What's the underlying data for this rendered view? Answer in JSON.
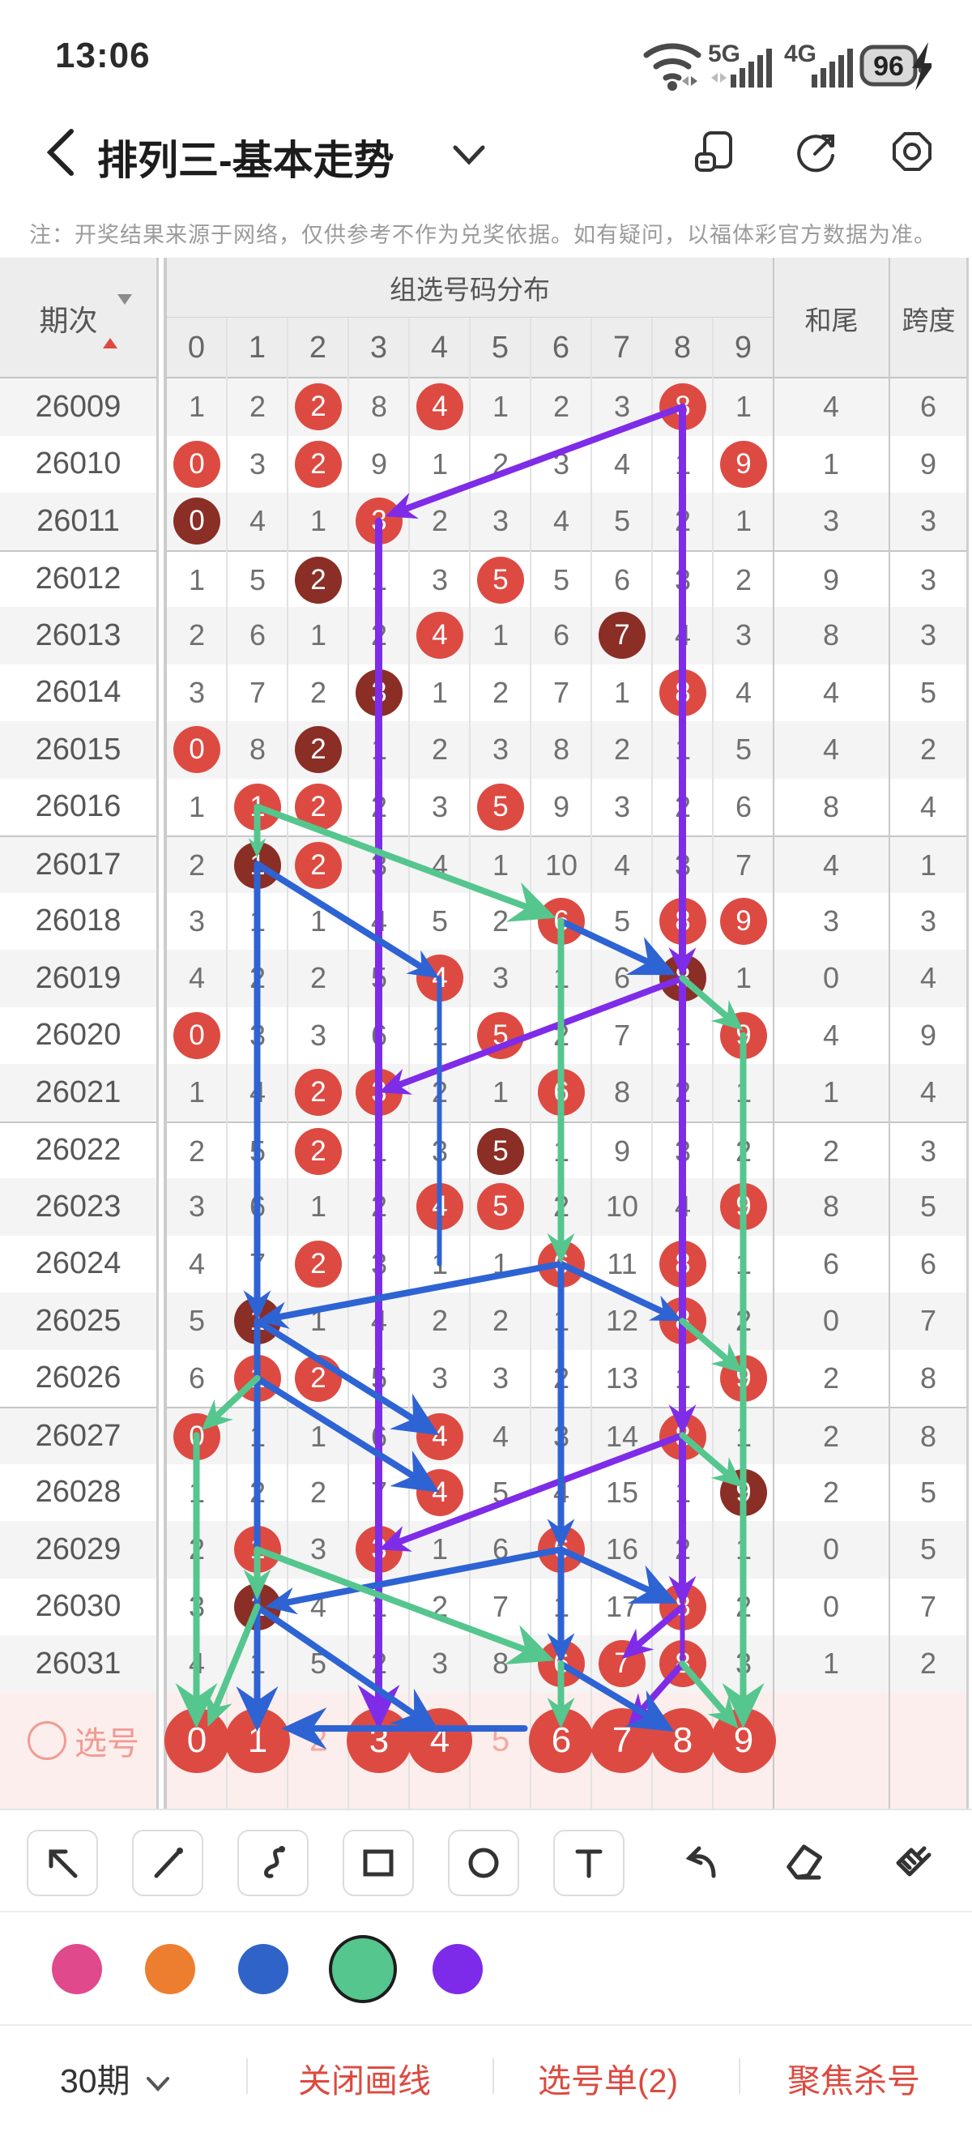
{
  "status_bar": {
    "time": "13:06",
    "battery": "96",
    "net1": "5G",
    "net2": "4G"
  },
  "nav": {
    "title": "排列三-基本走势"
  },
  "notice": "注：开奖结果来源于网络，仅供参考不作为兑奖依据。如有疑问，以福体彩官方数据为准。",
  "table": {
    "header": {
      "period": "期次",
      "group": "组选号码分布",
      "digits": [
        "0",
        "1",
        "2",
        "3",
        "4",
        "5",
        "6",
        "7",
        "8",
        "9"
      ],
      "hewei": "和尾",
      "kuadu": "跨度"
    },
    "rows": [
      {
        "p": "26009",
        "c": [
          "1",
          "2",
          "2r",
          "8",
          "4r",
          "1",
          "2",
          "3",
          "8r",
          "1"
        ],
        "h": "4",
        "k": "6"
      },
      {
        "p": "26010",
        "c": [
          "0r",
          "3",
          "2r",
          "9",
          "1",
          "2",
          "3",
          "4",
          "1",
          "9r"
        ],
        "h": "1",
        "k": "9"
      },
      {
        "p": "26011",
        "c": [
          "0d",
          "4",
          "1",
          "3r",
          "2",
          "3",
          "4",
          "5",
          "2",
          "1"
        ],
        "h": "3",
        "k": "3"
      },
      {
        "p": "26012",
        "c": [
          "1",
          "5",
          "2d",
          "1",
          "3",
          "5r",
          "5",
          "6",
          "3",
          "2"
        ],
        "h": "9",
        "k": "3"
      },
      {
        "p": "26013",
        "c": [
          "2",
          "6",
          "1",
          "2",
          "4r",
          "1",
          "6",
          "7d",
          "4",
          "3"
        ],
        "h": "8",
        "k": "3"
      },
      {
        "p": "26014",
        "c": [
          "3",
          "7",
          "2",
          "3d",
          "1",
          "2",
          "7",
          "1",
          "8r",
          "4"
        ],
        "h": "4",
        "k": "5"
      },
      {
        "p": "26015",
        "c": [
          "0r",
          "8",
          "2d",
          "1",
          "2",
          "3",
          "8",
          "2",
          "1",
          "5"
        ],
        "h": "4",
        "k": "2"
      },
      {
        "p": "26016",
        "c": [
          "1",
          "1r",
          "2r",
          "2",
          "3",
          "5r",
          "9",
          "3",
          "2",
          "6"
        ],
        "h": "8",
        "k": "4"
      },
      {
        "p": "26017",
        "c": [
          "2",
          "1d",
          "2r",
          "3",
          "4",
          "1",
          "10",
          "4",
          "3",
          "7"
        ],
        "h": "4",
        "k": "1"
      },
      {
        "p": "26018",
        "c": [
          "3",
          "1",
          "1",
          "4",
          "5",
          "2",
          "6r",
          "5",
          "8r",
          "9r"
        ],
        "h": "3",
        "k": "3"
      },
      {
        "p": "26019",
        "c": [
          "4",
          "2",
          "2",
          "5",
          "4r",
          "3",
          "1",
          "6",
          "8d",
          "1"
        ],
        "h": "0",
        "k": "4"
      },
      {
        "p": "26020",
        "c": [
          "0r",
          "3",
          "3",
          "6",
          "1",
          "5r",
          "2",
          "7",
          "1",
          "9r"
        ],
        "h": "4",
        "k": "9"
      },
      {
        "p": "26021",
        "c": [
          "1",
          "4",
          "2r",
          "3r",
          "2",
          "1",
          "6r",
          "8",
          "2",
          "1"
        ],
        "h": "1",
        "k": "4"
      },
      {
        "p": "26022",
        "c": [
          "2",
          "5",
          "2r",
          "1",
          "3",
          "5d",
          "1",
          "9",
          "3",
          "2"
        ],
        "h": "2",
        "k": "3"
      },
      {
        "p": "26023",
        "c": [
          "3",
          "6",
          "1",
          "2",
          "4r",
          "5r",
          "2",
          "10",
          "4",
          "9r"
        ],
        "h": "8",
        "k": "5"
      },
      {
        "p": "26024",
        "c": [
          "4",
          "7",
          "2r",
          "3",
          "1",
          "1",
          "6r",
          "11",
          "8r",
          "1"
        ],
        "h": "6",
        "k": "6"
      },
      {
        "p": "26025",
        "c": [
          "5",
          "1d",
          "1",
          "4",
          "2",
          "2",
          "1",
          "12",
          "8r",
          "2"
        ],
        "h": "0",
        "k": "7"
      },
      {
        "p": "26026",
        "c": [
          "6",
          "1r",
          "2r",
          "5",
          "3",
          "3",
          "2",
          "13",
          "1",
          "9r"
        ],
        "h": "2",
        "k": "8"
      },
      {
        "p": "26027",
        "c": [
          "0r",
          "1",
          "1",
          "6",
          "4r",
          "4",
          "3",
          "14",
          "8r",
          "1"
        ],
        "h": "2",
        "k": "8"
      },
      {
        "p": "26028",
        "c": [
          "1",
          "2",
          "2",
          "7",
          "4r",
          "5",
          "4",
          "15",
          "1",
          "9d"
        ],
        "h": "2",
        "k": "5"
      },
      {
        "p": "26029",
        "c": [
          "2",
          "1r",
          "3",
          "3r",
          "1",
          "6",
          "6r",
          "16",
          "2",
          "1"
        ],
        "h": "0",
        "k": "5"
      },
      {
        "p": "26030",
        "c": [
          "3",
          "1d",
          "4",
          "1",
          "2",
          "7",
          "1",
          "17",
          "8r",
          "2"
        ],
        "h": "0",
        "k": "7"
      },
      {
        "p": "26031",
        "c": [
          "4",
          "1",
          "5",
          "2",
          "3",
          "8",
          "6r",
          "7r",
          "8r",
          "3"
        ],
        "h": "1",
        "k": "2"
      }
    ],
    "pick_rows": [
      {
        "label": "选号",
        "c": [
          "0r",
          "1r",
          "2",
          "3r",
          "4r",
          "5",
          "6r",
          "7r",
          "8r",
          "9r"
        ]
      },
      {
        "label": "选号",
        "c": [
          "0",
          "1",
          "2",
          "3",
          "4",
          "5",
          "6",
          "7",
          "8",
          "9"
        ]
      }
    ]
  },
  "annotations": {
    "colors": {
      "purple": "#7e2ce8",
      "blue": "#2e63d4",
      "green": "#55c68e"
    },
    "arrows": [
      {
        "c": "purple",
        "f": [
          8,
          0
        ],
        "t": [
          3,
          2,
          8,
          -6
        ],
        "h": "med"
      },
      {
        "c": "purple",
        "f": [
          3,
          2
        ],
        "t": [
          3,
          23,
          0,
          -12
        ],
        "h": "big",
        "w": 9
      },
      {
        "c": "purple",
        "f": [
          8,
          0
        ],
        "t": [
          8,
          10
        ],
        "h": "med",
        "w": 9
      },
      {
        "c": "purple",
        "f": [
          8,
          10
        ],
        "t": [
          8,
          18
        ],
        "h": "med",
        "w": 9
      },
      {
        "c": "purple",
        "f": [
          8,
          18
        ],
        "t": [
          8,
          21
        ],
        "h": "med",
        "w": 9
      },
      {
        "c": "purple",
        "f": [
          8,
          21
        ],
        "t": [
          8,
          22
        ],
        "h": "none",
        "w": 6
      },
      {
        "c": "purple",
        "f": [
          8,
          10
        ],
        "t": [
          3,
          12
        ],
        "h": "med"
      },
      {
        "c": "purple",
        "f": [
          8,
          18
        ],
        "t": [
          3,
          20
        ],
        "h": "med"
      },
      {
        "c": "purple",
        "f": [
          8,
          21
        ],
        "t": [
          7,
          22,
          0,
          -6
        ],
        "h": "med"
      },
      {
        "c": "purple",
        "f": [
          8,
          22
        ],
        "t": [
          7,
          23,
          8,
          -18
        ],
        "h": "med"
      },
      {
        "c": "blue",
        "f": [
          1,
          8
        ],
        "t": [
          4,
          10
        ],
        "h": "med"
      },
      {
        "c": "blue",
        "f": [
          6,
          9
        ],
        "t": [
          8,
          10,
          -8,
          -4
        ],
        "h": "big"
      },
      {
        "c": "blue",
        "f": [
          1,
          8
        ],
        "t": [
          1,
          16
        ],
        "h": "med"
      },
      {
        "c": "blue",
        "f": [
          1,
          16
        ],
        "t": [
          1,
          23,
          0,
          -10
        ],
        "h": "big"
      },
      {
        "c": "blue",
        "f": [
          6,
          15
        ],
        "t": [
          1,
          16
        ],
        "h": "med"
      },
      {
        "c": "blue",
        "f": [
          6,
          15
        ],
        "t": [
          8,
          16
        ],
        "h": "med"
      },
      {
        "c": "blue",
        "f": [
          1,
          16
        ],
        "t": [
          4,
          18
        ],
        "h": "big"
      },
      {
        "c": "blue",
        "f": [
          1,
          17
        ],
        "t": [
          4,
          19
        ],
        "h": "big"
      },
      {
        "c": "blue",
        "f": [
          6,
          15
        ],
        "t": [
          6,
          20
        ],
        "h": "med"
      },
      {
        "c": "blue",
        "f": [
          6,
          20
        ],
        "t": [
          6,
          22
        ],
        "h": "med"
      },
      {
        "c": "blue",
        "f": [
          6,
          20
        ],
        "t": [
          1,
          21,
          10,
          0
        ],
        "h": "med"
      },
      {
        "c": "blue",
        "f": [
          6,
          20
        ],
        "t": [
          8,
          21,
          -6,
          -4
        ],
        "h": "big"
      },
      {
        "c": "blue",
        "f": [
          1,
          21
        ],
        "t": [
          4,
          23,
          0,
          -10
        ],
        "h": "big"
      },
      {
        "c": "blue",
        "f": [
          5,
          23,
          30,
          -14
        ],
        "t": [
          1,
          23,
          30,
          -14
        ],
        "h": "big"
      },
      {
        "c": "blue",
        "f": [
          6,
          22
        ],
        "t": [
          8,
          23,
          -10,
          -10
        ],
        "h": "big"
      },
      {
        "c": "blue",
        "f": [
          4,
          10
        ],
        "t": [
          4,
          15
        ],
        "h": "none",
        "w": 6
      },
      {
        "c": "green",
        "f": [
          1,
          7
        ],
        "t": [
          1,
          8,
          0,
          -8
        ],
        "h": "small"
      },
      {
        "c": "green",
        "f": [
          1,
          7
        ],
        "t": [
          6,
          9,
          -6,
          -4
        ],
        "h": "big"
      },
      {
        "c": "green",
        "f": [
          6,
          9
        ],
        "t": [
          6,
          15
        ],
        "h": "med"
      },
      {
        "c": "green",
        "f": [
          8,
          10
        ],
        "t": [
          9,
          11,
          0,
          -6
        ],
        "h": "med"
      },
      {
        "c": "green",
        "f": [
          9,
          11
        ],
        "t": [
          9,
          23,
          0,
          -14
        ],
        "h": "big"
      },
      {
        "c": "green",
        "f": [
          8,
          16
        ],
        "t": [
          9,
          17,
          0,
          -6
        ],
        "h": "med"
      },
      {
        "c": "green",
        "f": [
          8,
          18
        ],
        "t": [
          9,
          19,
          0,
          -6
        ],
        "h": "med"
      },
      {
        "c": "green",
        "f": [
          1,
          17
        ],
        "t": [
          0,
          18,
          6,
          -6
        ],
        "h": "med"
      },
      {
        "c": "green",
        "f": [
          0,
          18
        ],
        "t": [
          0,
          23,
          0,
          -14
        ],
        "h": "big"
      },
      {
        "c": "green",
        "f": [
          1,
          20
        ],
        "t": [
          1,
          21,
          0,
          -8
        ],
        "h": "med"
      },
      {
        "c": "green",
        "f": [
          1,
          20
        ],
        "t": [
          6,
          22,
          -8,
          -4
        ],
        "h": "big"
      },
      {
        "c": "green",
        "f": [
          1,
          21
        ],
        "t": [
          0,
          23,
          14,
          -16
        ],
        "h": "med"
      },
      {
        "c": "green",
        "f": [
          6,
          22
        ],
        "t": [
          6,
          23,
          0,
          -14
        ],
        "h": "med"
      },
      {
        "c": "green",
        "f": [
          8,
          22
        ],
        "t": [
          9,
          23,
          -6,
          -14
        ],
        "h": "med"
      }
    ]
  },
  "toolbar": {
    "tools": [
      "arrow-tool",
      "line-tool",
      "curve-tool",
      "rect-tool",
      "ellipse-tool",
      "text-tool",
      "undo",
      "eraser",
      "clear-all"
    ]
  },
  "palette": {
    "colors": [
      "#e1498d",
      "#ee7e2f",
      "#2f63c8",
      "#55c68d",
      "#7d2be9"
    ],
    "selected_index": 3
  },
  "bottom_bar": {
    "periods": "30期",
    "close_draw": "关闭画线",
    "pick_list": "选号单(2)",
    "focus_kill": "聚焦杀号",
    "accent": "#dc4a40"
  }
}
